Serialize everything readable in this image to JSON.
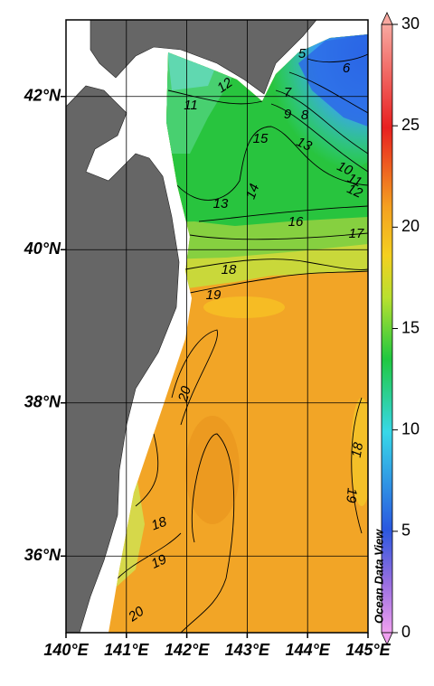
{
  "map": {
    "xlim": [
      140,
      145
    ],
    "ylim": [
      35,
      43
    ],
    "xticks": [
      {
        "value": 140,
        "label": "140°E"
      },
      {
        "value": 141,
        "label": "141°E"
      },
      {
        "value": 142,
        "label": "142°E"
      },
      {
        "value": 143,
        "label": "143°E"
      },
      {
        "value": 144,
        "label": "144°E"
      },
      {
        "value": 145,
        "label": "145°E"
      }
    ],
    "yticks": [
      {
        "value": 36,
        "label": "36°N"
      },
      {
        "value": 38,
        "label": "38°N"
      },
      {
        "value": 40,
        "label": "40°N"
      },
      {
        "value": 42,
        "label": "42°N"
      }
    ],
    "grid": true,
    "colorbar": {
      "lim": [
        0,
        30
      ],
      "ticks": [
        0,
        5,
        10,
        15,
        20,
        25,
        30
      ]
    },
    "contour_labels": [
      12,
      11,
      15,
      14,
      13,
      16,
      17,
      18,
      19,
      20,
      18,
      19,
      18,
      19,
      20,
      7,
      9,
      8,
      5,
      6,
      13,
      10,
      11,
      12
    ],
    "watermark": "Ocean Data View"
  }
}
